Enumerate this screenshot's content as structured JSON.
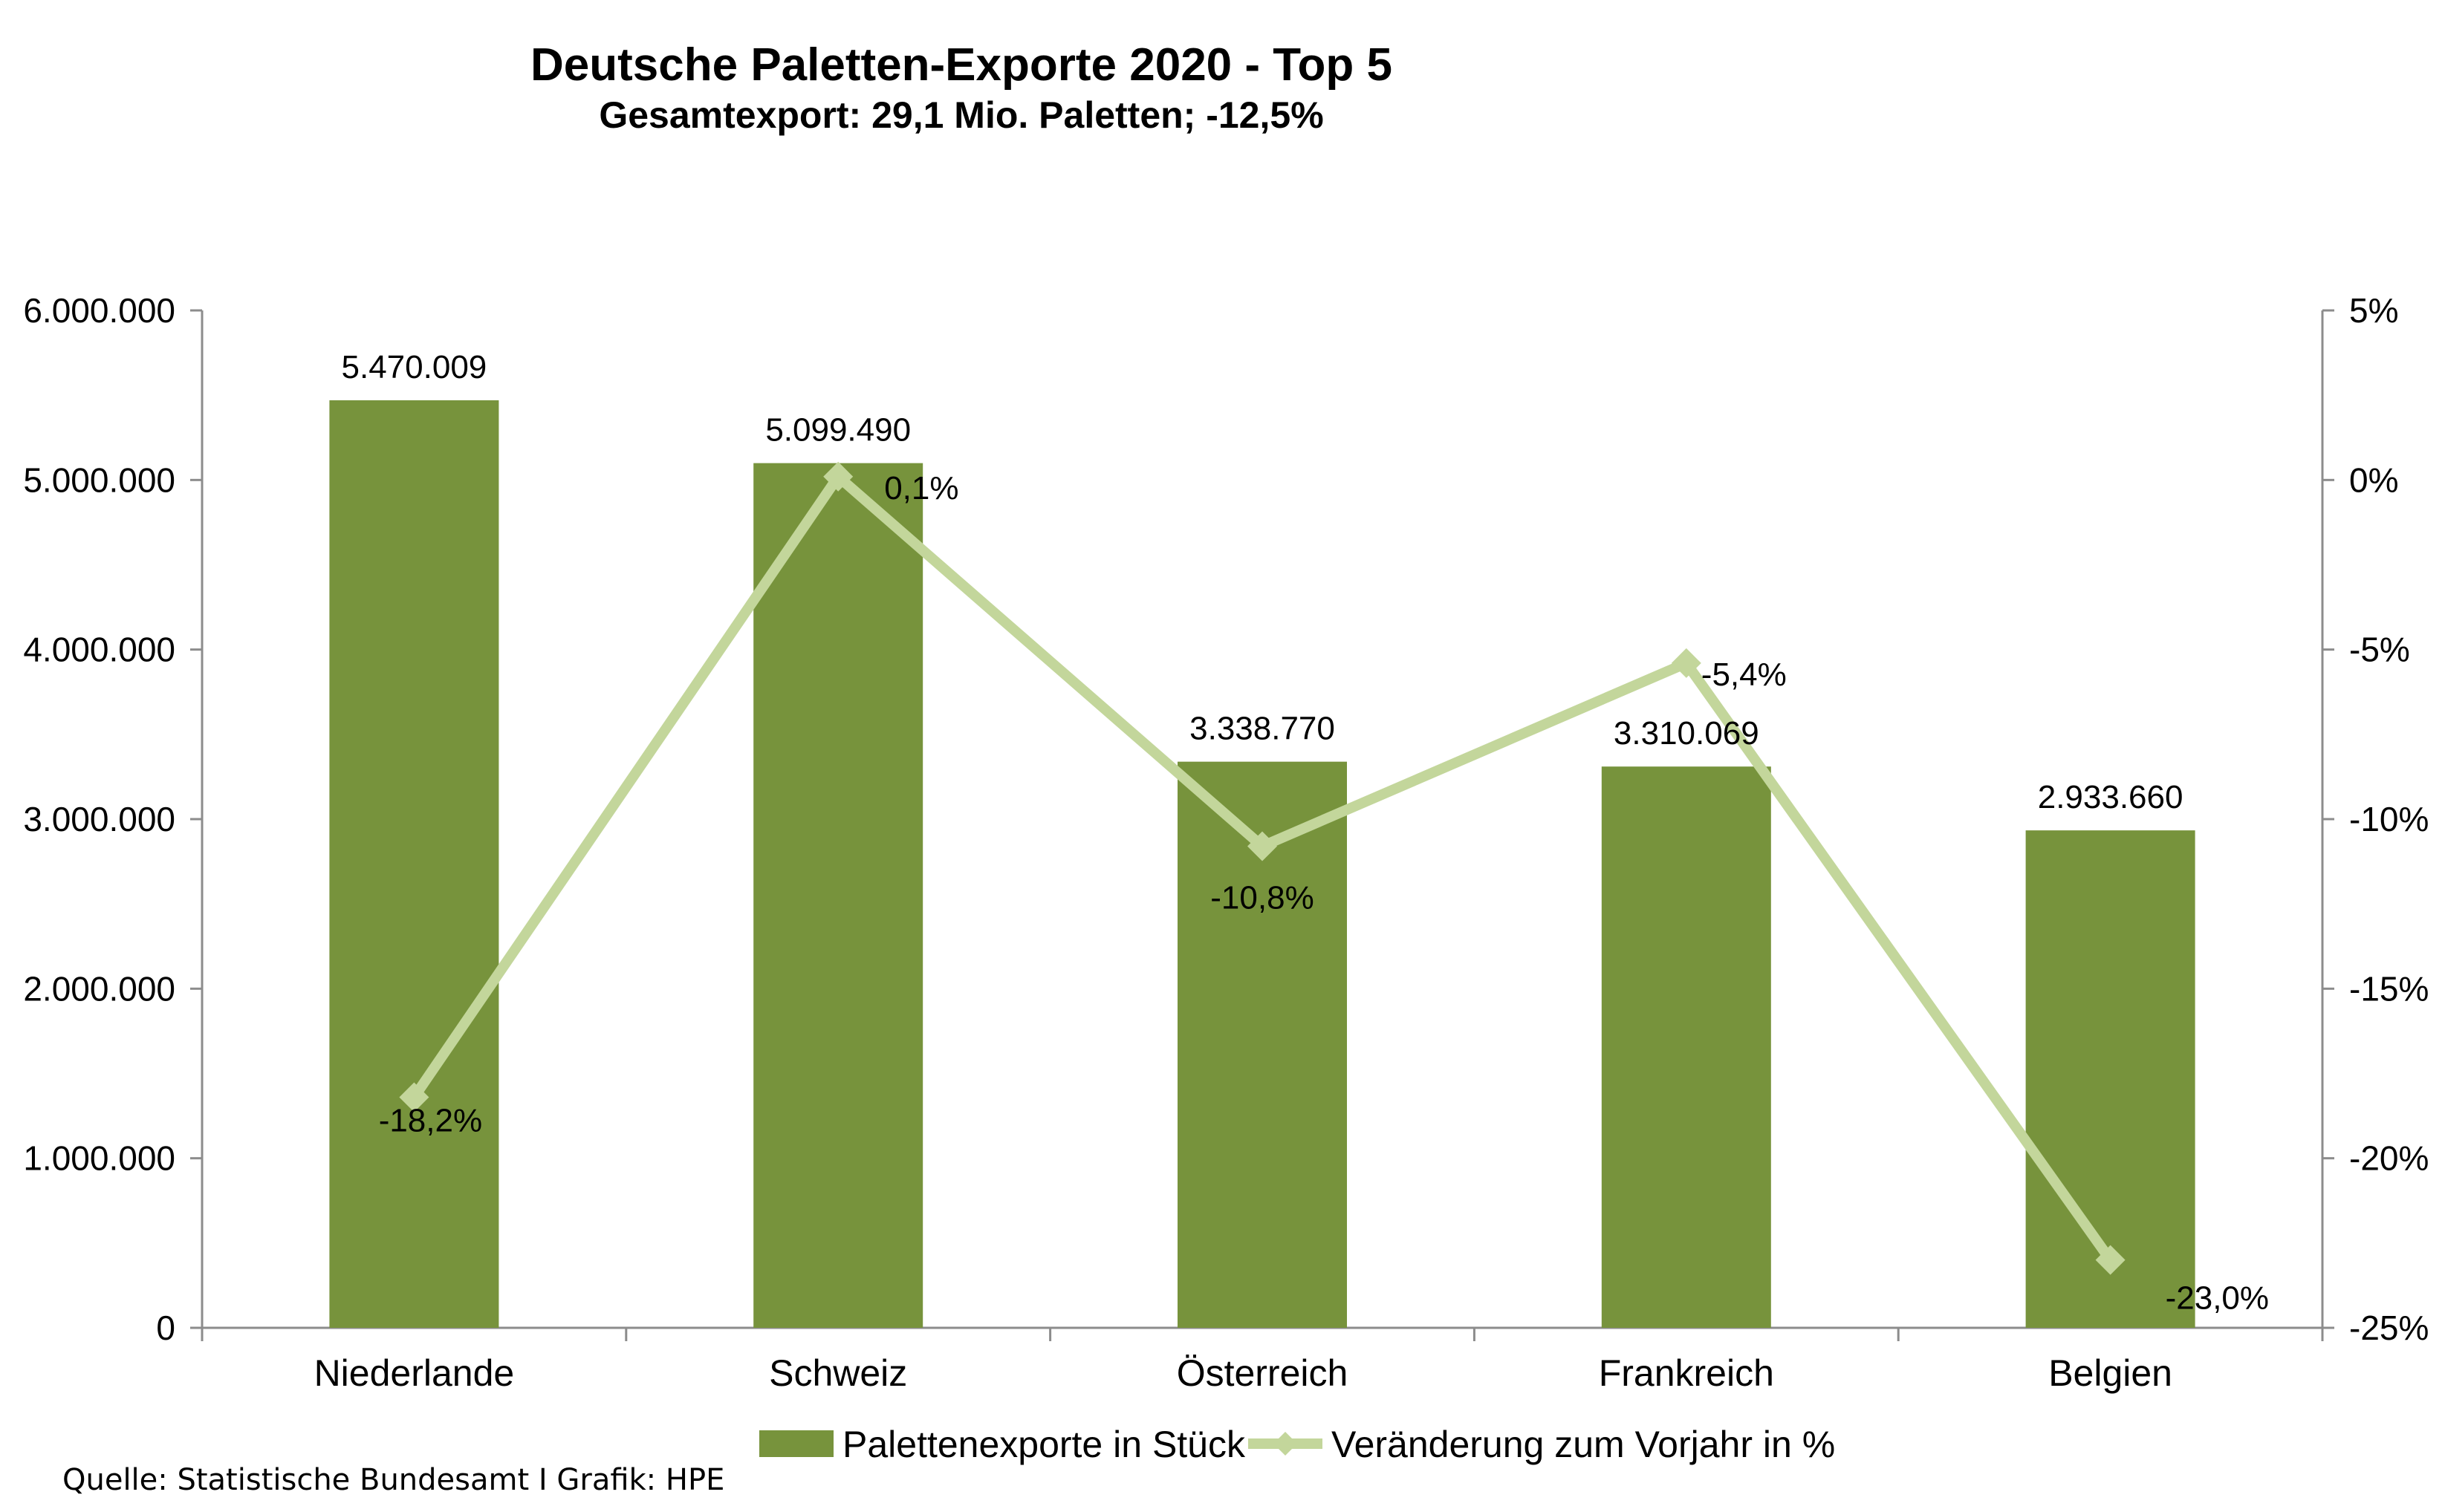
{
  "chart_data": {
    "type": "bar",
    "title": "Deutsche Paletten-Exporte 2020 - Top 5",
    "subtitle": "Gesamtexport: 29,1 Mio. Paletten;  -12,5%",
    "categories": [
      "Niederlande",
      "Schweiz",
      "Österreich",
      "Frankreich",
      "Belgien"
    ],
    "series": [
      {
        "name": "Palettenexporte in Stück",
        "type": "bar",
        "axis": "left",
        "color": "#77933c",
        "values": [
          5470009,
          5099490,
          3338770,
          3310069,
          2933660
        ],
        "labels": [
          "5.470.009",
          "5.099.490",
          "3.338.770",
          "3.310.069",
          "2.933.660"
        ]
      },
      {
        "name": "Veränderung zum Vorjahr in %",
        "type": "line",
        "axis": "right",
        "color": "#c3d69b",
        "values": [
          -18.2,
          0.1,
          -10.8,
          -5.4,
          -23.0
        ],
        "labels": [
          "-18,2%",
          "0,1%",
          "-10,8%",
          "-5,4%",
          "-23,0%"
        ]
      }
    ],
    "y_left": {
      "range": [
        0,
        6000000
      ],
      "ticks": [
        "0",
        "1.000.000",
        "2.000.000",
        "3.000.000",
        "4.000.000",
        "5.000.000",
        "6.000.000"
      ]
    },
    "y_right": {
      "range": [
        -25,
        5
      ],
      "ticks": [
        "-25%",
        "-20%",
        "-15%",
        "-10%",
        "-5%",
        "0%",
        "5%"
      ]
    },
    "grid": false,
    "legend_position": "bottom"
  },
  "source": "Quelle: Statistische Bundesamt I Grafik: HPE"
}
